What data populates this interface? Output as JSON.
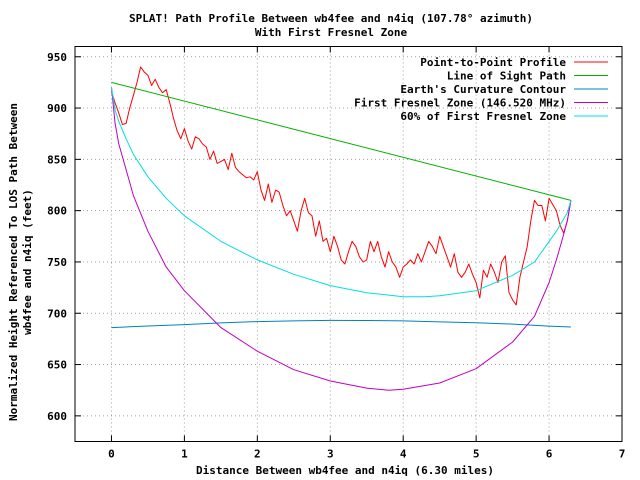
{
  "chart_data": {
    "type": "line",
    "title": "SPLAT! Path Profile Between wb4fee and n4iq (107.78° azimuth)",
    "subtitle": "With First Fresnel Zone",
    "xlabel": "Distance Between wb4fee and n4iq (6.30 miles)",
    "ylabel_line1": "Normalized Height Referenced To LOS Path Between",
    "ylabel_line2": "wb4fee and n4iq (feet)",
    "xlim": [
      -0.5,
      7
    ],
    "ylim": [
      575,
      960
    ],
    "x_ticks": [
      0,
      1,
      2,
      3,
      4,
      5,
      6,
      7
    ],
    "y_ticks": [
      600,
      650,
      700,
      750,
      800,
      850,
      900,
      950
    ],
    "grid": true,
    "legend_position": "top-right",
    "series": [
      {
        "name": "Point-to-Point Profile",
        "color": "#ff0000",
        "x": [
          0,
          0.05,
          0.1,
          0.15,
          0.2,
          0.25,
          0.3,
          0.35,
          0.4,
          0.45,
          0.5,
          0.55,
          0.6,
          0.65,
          0.7,
          0.75,
          0.8,
          0.85,
          0.9,
          0.95,
          1.0,
          1.05,
          1.1,
          1.15,
          1.2,
          1.25,
          1.3,
          1.35,
          1.4,
          1.45,
          1.5,
          1.55,
          1.6,
          1.65,
          1.7,
          1.75,
          1.8,
          1.85,
          1.9,
          1.95,
          2.0,
          2.05,
          2.1,
          2.15,
          2.2,
          2.25,
          2.3,
          2.35,
          2.4,
          2.45,
          2.5,
          2.55,
          2.6,
          2.65,
          2.7,
          2.75,
          2.8,
          2.85,
          2.9,
          2.95,
          3.0,
          3.05,
          3.1,
          3.15,
          3.2,
          3.25,
          3.3,
          3.35,
          3.4,
          3.45,
          3.5,
          3.55,
          3.6,
          3.65,
          3.7,
          3.75,
          3.8,
          3.85,
          3.9,
          3.95,
          4.0,
          4.05,
          4.1,
          4.15,
          4.2,
          4.25,
          4.3,
          4.35,
          4.4,
          4.45,
          4.5,
          4.55,
          4.6,
          4.65,
          4.7,
          4.75,
          4.8,
          4.85,
          4.9,
          4.95,
          5.0,
          5.05,
          5.1,
          5.15,
          5.2,
          5.25,
          5.3,
          5.35,
          5.4,
          5.45,
          5.5,
          5.55,
          5.6,
          5.65,
          5.7,
          5.75,
          5.8,
          5.85,
          5.9,
          5.95,
          6.0,
          6.05,
          6.1,
          6.15,
          6.2,
          6.25,
          6.3
        ],
        "values": [
          916,
          905,
          895,
          884,
          885,
          900,
          912,
          925,
          940,
          935,
          932,
          922,
          928,
          920,
          915,
          918,
          905,
          890,
          878,
          870,
          880,
          868,
          860,
          872,
          870,
          865,
          862,
          850,
          858,
          846,
          848,
          850,
          840,
          856,
          842,
          838,
          835,
          832,
          833,
          830,
          838,
          820,
          810,
          826,
          808,
          820,
          818,
          805,
          795,
          800,
          790,
          780,
          800,
          812,
          798,
          795,
          775,
          790,
          770,
          773,
          760,
          775,
          765,
          752,
          748,
          760,
          770,
          765,
          755,
          750,
          752,
          770,
          760,
          770,
          755,
          745,
          760,
          750,
          745,
          735,
          745,
          748,
          752,
          748,
          758,
          750,
          760,
          770,
          765,
          758,
          775,
          765,
          755,
          745,
          758,
          740,
          735,
          740,
          748,
          738,
          730,
          715,
          742,
          735,
          748,
          740,
          730,
          750,
          756,
          720,
          713,
          708,
          735,
          750,
          765,
          790,
          810,
          805,
          805,
          790,
          812,
          806,
          800,
          786,
          778,
          790,
          810
        ]
      },
      {
        "name": "Line of Sight Path",
        "color": "#00b000",
        "x": [
          0,
          6.3
        ],
        "values": [
          925,
          810
        ]
      },
      {
        "name": "Earth's Curvature Contour",
        "color": "#0080c0",
        "x": [
          0,
          0.5,
          1,
          1.5,
          2,
          2.5,
          3,
          3.5,
          4,
          4.5,
          5,
          5.5,
          6,
          6.3
        ],
        "values": [
          686,
          687.6,
          688.9,
          690.6,
          691.9,
          692.5,
          693.0,
          692.9,
          692.5,
          691.6,
          690.7,
          689.4,
          687.5,
          686.6
        ]
      },
      {
        "name": "First Fresnel Zone (146.520 MHz)",
        "color": "#c000c0",
        "x": [
          0,
          0.05,
          0.1,
          0.2,
          0.3,
          0.5,
          0.75,
          1,
          1.5,
          2,
          2.5,
          3,
          3.5,
          3.8,
          4,
          4.5,
          5,
          5.5,
          5.8,
          6,
          6.1,
          6.2,
          6.25,
          6.3
        ],
        "values": [
          920,
          885,
          865,
          840,
          815,
          780,
          745,
          722,
          686,
          663,
          645,
          634,
          627,
          625,
          626,
          632,
          646,
          672,
          697,
          730,
          752,
          777,
          790,
          810
        ]
      },
      {
        "name": "60% of First Fresnel Zone",
        "color": "#00e0e0",
        "x": [
          0,
          0.05,
          0.1,
          0.2,
          0.3,
          0.5,
          0.75,
          1,
          1.5,
          2,
          2.5,
          3,
          3.5,
          4,
          4.3,
          4.5,
          5,
          5.5,
          5.8,
          6,
          6.1,
          6.2,
          6.25,
          6.3
        ],
        "values": [
          920,
          898,
          887,
          870,
          855,
          833,
          812,
          795,
          770,
          752,
          738,
          727,
          720,
          716,
          716,
          717,
          722,
          737,
          750,
          770,
          780,
          792,
          798,
          810
        ]
      }
    ]
  }
}
